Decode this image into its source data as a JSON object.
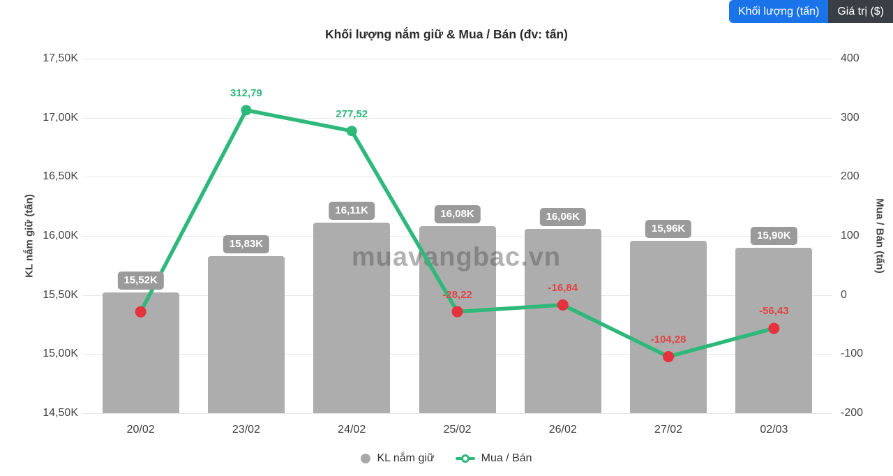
{
  "toolbar": {
    "volume_button": "Khối lượng (tấn)",
    "value_button": "Giá trị ($)",
    "active_color": "#1a73e8",
    "inactive_color": "#3a3f45"
  },
  "watermark": "muavangbac.vn",
  "chart_data": {
    "type": "bar",
    "title": "Khối lượng nắm giữ & Mua / Bán (đv: tấn)",
    "categories": [
      "20/02",
      "23/02",
      "24/02",
      "25/02",
      "26/02",
      "27/02",
      "02/03"
    ],
    "series": [
      {
        "name": "KL nắm giữ",
        "kind": "bar",
        "axis": "left",
        "values": [
          15520,
          15830,
          16110,
          16080,
          16060,
          15960,
          15900
        ],
        "labels": [
          "15,52K",
          "15,83K",
          "16,11K",
          "16,08K",
          "16,06K",
          "15,96K",
          "15,90K"
        ],
        "color": "#adadad",
        "label_bg": "#9a9a9a"
      },
      {
        "name": "Mua / Bán",
        "kind": "line",
        "axis": "right",
        "values": [
          -28.5,
          312.79,
          277.52,
          -28.22,
          -16.84,
          -104.28,
          -56.43
        ],
        "labels": [
          null,
          "312,79",
          "277,52",
          "-28,22",
          "-16,84",
          "-104,28",
          "-56,43"
        ],
        "color": "#2eb87a",
        "negative_dot_color": "#e5323c",
        "positive_label_color": "#2eb87a",
        "negative_label_color": "#e04545"
      }
    ],
    "left_axis": {
      "label": "KL nắm giữ (tấn)",
      "min": 14500,
      "max": 17500,
      "tick_values": [
        17500,
        17000,
        16500,
        16000,
        15500,
        15000,
        14500
      ],
      "tick_labels": [
        "17,50K",
        "17,00K",
        "16,50K",
        "16,00K",
        "15,50K",
        "15,00K",
        "14,50K"
      ]
    },
    "right_axis": {
      "label": "Mua / Bán (tấn)",
      "min": -200,
      "max": 400,
      "tick_values": [
        400,
        300,
        200,
        100,
        0,
        -100,
        -200
      ],
      "tick_labels": [
        "400",
        "300",
        "200",
        "100",
        "0",
        "-100",
        "-200"
      ]
    },
    "legend": [
      {
        "label": "KL nắm giữ",
        "marker": "circle"
      },
      {
        "label": "Mua / Bán",
        "marker": "line-dot"
      }
    ],
    "legend_position": "bottom",
    "grid": true
  }
}
